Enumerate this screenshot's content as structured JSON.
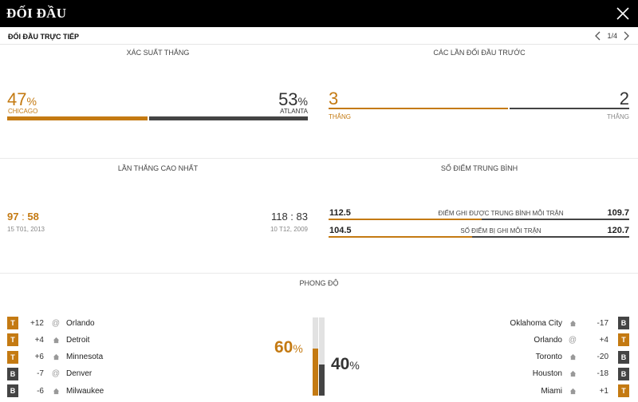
{
  "header": {
    "title": "ĐỐI ĐẦU"
  },
  "subheader": {
    "label": "ĐỐI ĐẦU TRỰC TIẾP",
    "page": "1/4"
  },
  "colors": {
    "orange": "#c47a12",
    "dark": "#444444"
  },
  "win_prob": {
    "title": "XÁC SUẤT THẮNG",
    "left": {
      "value": "47",
      "unit": "%",
      "team": "CHICAGO",
      "fraction": 0.47
    },
    "right": {
      "value": "53",
      "unit": "%",
      "team": "ATLANTA",
      "fraction": 0.53
    }
  },
  "h2h": {
    "title": "CÁC LẦN ĐỐI ĐẦU TRƯỚC",
    "left": {
      "value": "3",
      "label": "THẮNG",
      "fraction": 0.6
    },
    "right": {
      "value": "2",
      "label": "THẮNG",
      "fraction": 0.4
    }
  },
  "biggest_win": {
    "title": "LẦN THẮNG CAO NHẤT",
    "left": {
      "score_a": "97",
      "sep": ":",
      "score_b": "58",
      "date": "15 T01, 2013"
    },
    "right": {
      "score": "118 : 83",
      "date": "10 T12, 2009"
    }
  },
  "avg_points": {
    "title": "SỐ ĐIỂM TRUNG BÌNH",
    "rows": [
      {
        "left": "112.5",
        "label": "ĐIỂM GHI ĐƯỢC TRUNG BÌNH MỖI TRẬN",
        "right": "109.7"
      },
      {
        "left": "104.5",
        "label": "SỐ ĐIỂM BỊ GHI MỖI TRẬN",
        "right": "120.7"
      }
    ]
  },
  "form": {
    "title": "PHONG ĐỘ",
    "left_pct": {
      "value": "60",
      "unit": "%",
      "fraction": 0.6
    },
    "right_pct": {
      "value": "40",
      "unit": "%",
      "fraction": 0.4
    },
    "left_games": [
      {
        "result": "T",
        "diff": "+12",
        "venue": "away",
        "venue_symbol": "@",
        "opponent": "Orlando"
      },
      {
        "result": "T",
        "diff": "+4",
        "venue": "home",
        "venue_symbol": "",
        "opponent": "Detroit"
      },
      {
        "result": "T",
        "diff": "+6",
        "venue": "home",
        "venue_symbol": "",
        "opponent": "Minnesota"
      },
      {
        "result": "B",
        "diff": "-7",
        "venue": "away",
        "venue_symbol": "@",
        "opponent": "Denver"
      },
      {
        "result": "B",
        "diff": "-6",
        "venue": "home",
        "venue_symbol": "",
        "opponent": "Milwaukee"
      }
    ],
    "right_games": [
      {
        "result": "B",
        "diff": "-17",
        "venue": "home",
        "venue_symbol": "",
        "opponent": "Oklahoma City"
      },
      {
        "result": "T",
        "diff": "+4",
        "venue": "away",
        "venue_symbol": "@",
        "opponent": "Orlando"
      },
      {
        "result": "B",
        "diff": "-20",
        "venue": "home",
        "venue_symbol": "",
        "opponent": "Toronto"
      },
      {
        "result": "B",
        "diff": "-18",
        "venue": "home",
        "venue_symbol": "",
        "opponent": "Houston"
      },
      {
        "result": "T",
        "diff": "+1",
        "venue": "home",
        "venue_symbol": "",
        "opponent": "Miami"
      }
    ]
  }
}
